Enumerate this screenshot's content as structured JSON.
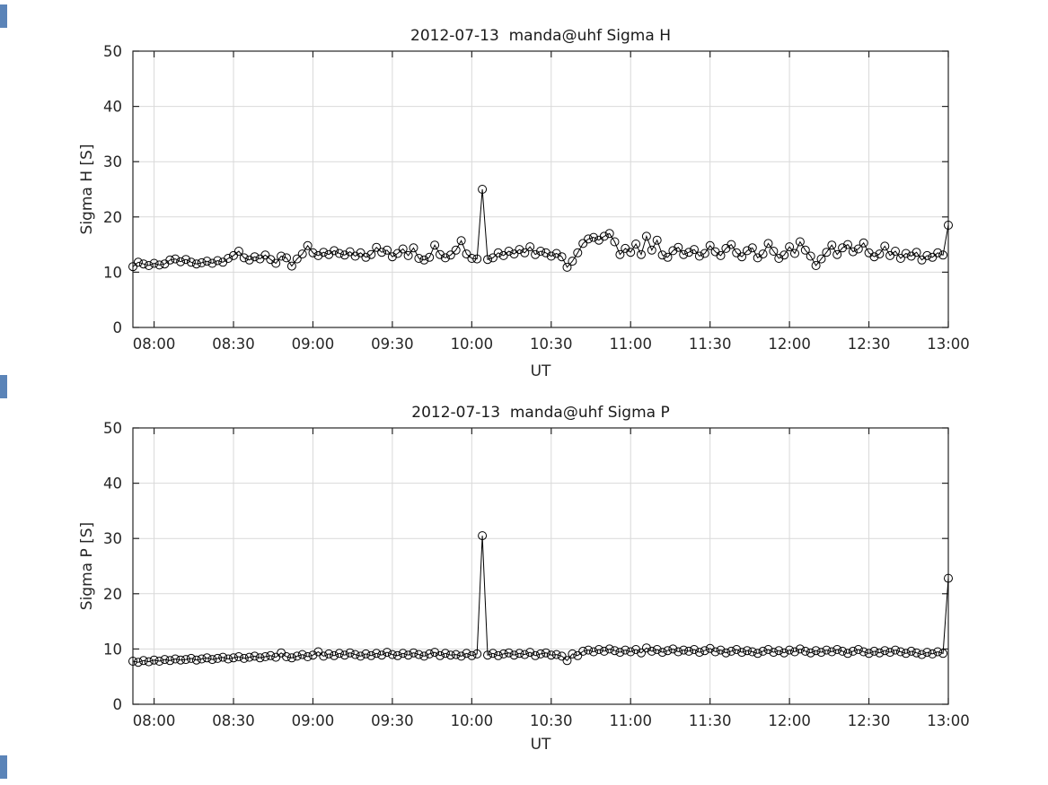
{
  "figure": {
    "background": "#ffffff",
    "axis_color": "#262626",
    "grid_color": "#d9d9d9",
    "data_color": "#000000"
  },
  "chart_data": [
    {
      "type": "line",
      "title": "2012-07-13  manda@uhf Sigma H",
      "ylabel": "Sigma H [S]",
      "xlabel": "UT",
      "ylim": [
        0,
        50
      ],
      "yticks": [
        0,
        10,
        20,
        30,
        40,
        50
      ],
      "xlim_hours": [
        7.8667,
        13.0
      ],
      "xticks_hours": [
        8,
        8.5,
        9,
        9.5,
        10,
        10.5,
        11,
        11.5,
        12,
        12.5,
        13
      ],
      "xtick_labels": [
        "08:00",
        "08:30",
        "09:00",
        "09:30",
        "10:00",
        "10:30",
        "11:00",
        "11:30",
        "12:00",
        "12:30",
        "13:00"
      ],
      "grid": true,
      "legend": null,
      "marker": "o",
      "x_start_hour": 7.8667,
      "x_step_hour": 0.0333333,
      "values": [
        11.0,
        11.8,
        11.5,
        11.2,
        11.6,
        11.3,
        11.5,
        12.2,
        12.4,
        11.9,
        12.3,
        11.8,
        11.5,
        11.7,
        12.0,
        11.6,
        12.1,
        11.8,
        12.5,
        13.0,
        13.8,
        12.6,
        12.2,
        12.8,
        12.4,
        13.1,
        12.3,
        11.6,
        12.9,
        12.6,
        11.1,
        12.4,
        13.3,
        14.8,
        13.5,
        13.0,
        13.6,
        13.2,
        13.9,
        13.4,
        13.1,
        13.7,
        12.9,
        13.5,
        12.7,
        13.2,
        14.5,
        13.6,
        14.0,
        12.8,
        13.4,
        14.2,
        13.0,
        14.4,
        12.5,
        12.2,
        12.7,
        14.9,
        13.2,
        12.6,
        13.1,
        14.0,
        15.7,
        13.3,
        12.5,
        12.4,
        25.0,
        12.3,
        12.6,
        13.5,
        13.0,
        13.8,
        13.3,
        14.1,
        13.5,
        14.6,
        13.2,
        13.8,
        13.5,
        12.9,
        13.4,
        12.8,
        10.9,
        12.0,
        13.5,
        15.2,
        16.0,
        16.3,
        15.8,
        16.5,
        17.0,
        15.5,
        13.2,
        14.3,
        13.6,
        15.1,
        13.2,
        16.5,
        14.0,
        15.8,
        13.1,
        12.7,
        13.9,
        14.5,
        13.2,
        13.6,
        14.1,
        12.9,
        13.4,
        14.8,
        13.7,
        13.0,
        14.3,
        15.0,
        13.5,
        12.8,
        13.9,
        14.4,
        12.6,
        13.3,
        15.2,
        13.8,
        12.5,
        13.1,
        14.6,
        13.4,
        15.5,
        14.0,
        12.9,
        11.2,
        12.4,
        13.6,
        14.9,
        13.2,
        14.4,
        15.0,
        13.7,
        14.2,
        15.3,
        13.5,
        12.8,
        13.3,
        14.7,
        13.0,
        13.8,
        12.5,
        13.4,
        12.9,
        13.6,
        12.2,
        13.0,
        12.7,
        13.5,
        13.1,
        18.5
      ]
    },
    {
      "type": "line",
      "title": "2012-07-13  manda@uhf Sigma P",
      "ylabel": "Sigma P [S]",
      "xlabel": "UT",
      "ylim": [
        0,
        50
      ],
      "yticks": [
        0,
        10,
        20,
        30,
        40,
        50
      ],
      "xlim_hours": [
        7.8667,
        13.0
      ],
      "xticks_hours": [
        8,
        8.5,
        9,
        9.5,
        10,
        10.5,
        11,
        11.5,
        12,
        12.5,
        13
      ],
      "xtick_labels": [
        "08:00",
        "08:30",
        "09:00",
        "09:30",
        "10:00",
        "10:30",
        "11:00",
        "11:30",
        "12:00",
        "12:30",
        "13:00"
      ],
      "grid": true,
      "legend": null,
      "marker": "o",
      "x_start_hour": 7.8667,
      "x_step_hour": 0.0333333,
      "values": [
        7.8,
        7.6,
        7.9,
        7.7,
        8.0,
        7.8,
        8.1,
        7.9,
        8.2,
        8.0,
        8.1,
        8.3,
        8.0,
        8.2,
        8.4,
        8.1,
        8.3,
        8.5,
        8.2,
        8.4,
        8.6,
        8.3,
        8.5,
        8.7,
        8.4,
        8.6,
        8.8,
        8.5,
        9.3,
        8.6,
        8.4,
        8.7,
        9.0,
        8.6,
        8.9,
        9.5,
        8.7,
        9.1,
        8.8,
        9.2,
        8.9,
        9.3,
        9.0,
        8.7,
        9.1,
        8.8,
        9.2,
        8.9,
        9.4,
        9.0,
        8.8,
        9.2,
        8.9,
        9.3,
        9.0,
        8.7,
        9.1,
        9.4,
        8.8,
        9.2,
        8.9,
        9.0,
        8.7,
        9.2,
        8.8,
        9.1,
        30.5,
        8.9,
        9.2,
        8.8,
        9.1,
        9.3,
        8.9,
        9.2,
        9.0,
        9.4,
        8.8,
        9.1,
        9.3,
        8.9,
        9.0,
        8.7,
        7.9,
        9.1,
        8.8,
        9.6,
        9.8,
        9.5,
        9.9,
        9.6,
        10.0,
        9.7,
        9.4,
        9.8,
        9.5,
        9.9,
        9.3,
        10.2,
        9.6,
        9.9,
        9.4,
        9.7,
        10.0,
        9.5,
        9.8,
        9.6,
        9.9,
        9.4,
        9.7,
        10.1,
        9.5,
        9.8,
        9.3,
        9.6,
        9.9,
        9.4,
        9.7,
        9.5,
        9.2,
        9.6,
        9.9,
        9.4,
        9.7,
        9.3,
        9.8,
        9.5,
        10.0,
        9.6,
        9.3,
        9.7,
        9.4,
        9.8,
        9.5,
        9.9,
        9.6,
        9.2,
        9.6,
        9.9,
        9.5,
        9.2,
        9.6,
        9.3,
        9.7,
        9.4,
        9.8,
        9.5,
        9.2,
        9.6,
        9.3,
        9.0,
        9.4,
        9.1,
        9.5,
        9.2,
        22.8
      ]
    }
  ]
}
